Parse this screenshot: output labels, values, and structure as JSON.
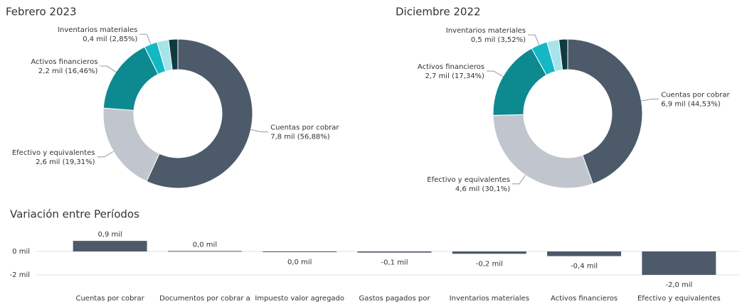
{
  "chart_data": [
    {
      "type": "pie",
      "title": "Febrero 2023",
      "categories": [
        "Cuentas por cobrar",
        "Efectivo y equivalentes",
        "Activos financieros",
        "Inventarios materiales",
        null,
        null
      ],
      "values": [
        56.88,
        19.31,
        16.46,
        2.85,
        2.5,
        2.0
      ],
      "value_labels": [
        "7,8 mil (56,88%)",
        "2,6 mil (19,31%)",
        "2,2 mil (16,46%)",
        "0,4 mil (2,85%)",
        null,
        null
      ],
      "colors": [
        "#4d5a6a",
        "#c1c6ce",
        "#0d8a8f",
        "#13b8c4",
        "#a7e3ea",
        "#0f3b3e"
      ]
    },
    {
      "type": "pie",
      "title": "Diciembre 2022",
      "categories": [
        "Cuentas por cobrar",
        "Efectivo y equivalentes",
        "Activos financieros",
        "Inventarios materiales",
        null,
        null
      ],
      "values": [
        44.53,
        30.1,
        17.34,
        3.52,
        2.6,
        1.9
      ],
      "value_labels": [
        "6,9 mil (44,53%)",
        "4,6 mil (30,1%)",
        "2,7 mil (17,34%)",
        "0,5 mil (3,52%)",
        null,
        null
      ],
      "colors": [
        "#4d5a6a",
        "#c1c6ce",
        "#0d8a8f",
        "#13b8c4",
        "#a7e3ea",
        "#0f3b3e"
      ]
    },
    {
      "type": "bar",
      "title": "Variación entre Períodos",
      "categories": [
        "Cuentas por cobrar",
        "Documentos por cobrar a",
        "Impuesto valor agregado",
        "Gastos pagados por",
        "Inventarios materiales",
        "Activos financieros",
        "Efectivo y equivalentes"
      ],
      "values": [
        0.9,
        0.04,
        -0.03,
        -0.1,
        -0.2,
        -0.4,
        -2.0
      ],
      "value_labels": [
        "0,9 mil",
        "0,0 mil",
        "0,0 mil",
        "-0,1 mil",
        "-0,2 mil",
        "-0,4 mil",
        "-2,0 mil"
      ],
      "color": "#4d5a6a",
      "ylim": [
        -2.2,
        1.5
      ],
      "yticks": [
        {
          "value": 0,
          "label": "0 mil"
        },
        {
          "value": -2,
          "label": "-2 mil"
        }
      ],
      "grid": true
    }
  ]
}
